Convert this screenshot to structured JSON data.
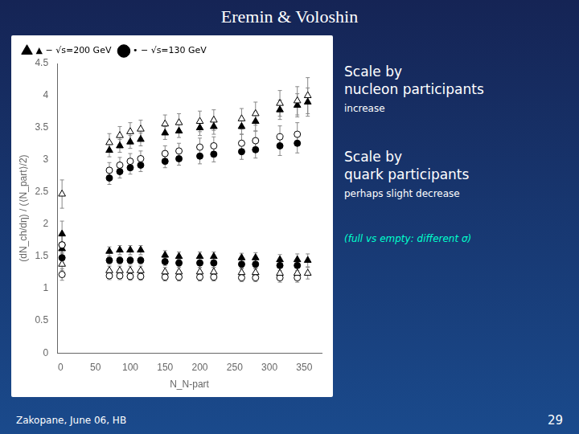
{
  "chart_data": {
    "type": "scatter",
    "title": "Eremin & Voloshin",
    "x_label": "N_N-part",
    "y_label": "(dN_ch/dη) / (⟨N_part⟩/2)",
    "xlim": [
      -5,
      375
    ],
    "ylim": [
      0,
      4.5
    ],
    "xticks": [
      0,
      50,
      100,
      150,
      200,
      250,
      300,
      350
    ],
    "yticks": [
      0,
      0.5,
      1,
      1.5,
      2,
      2.5,
      3,
      3.5,
      4,
      4.5
    ],
    "grid": false,
    "legend": "upper left",
    "annotations": [
      {
        "lines": [
          "Scale by",
          "nucleon participants",
          "increase"
        ]
      },
      {
        "lines": [
          "Scale by",
          "quark participants",
          "perhaps slight decrease"
        ]
      },
      {
        "lines": [
          "(full vs empty: different σ)"
        ],
        "color": "#00ffcc"
      }
    ],
    "footer": [
      "Zakopane, June 06, HB",
      "29"
    ],
    "series": [
      {
        "name": "▲ − √s=200 GeV",
        "marker": "triangle",
        "color": "white",
        "x": [
          2,
          70,
          85,
          100,
          115,
          150,
          170,
          200,
          220,
          260,
          280,
          315,
          340,
          355
        ],
        "values": [
          2.47,
          3.27,
          3.38,
          3.44,
          3.48,
          3.56,
          3.58,
          3.6,
          3.62,
          3.64,
          3.72,
          3.88,
          3.92,
          4.0
        ],
        "errors": [
          0.22,
          0.14,
          0.14,
          0.14,
          0.14,
          0.14,
          0.14,
          0.16,
          0.16,
          0.16,
          0.18,
          0.2,
          0.22,
          0.28
        ]
      },
      {
        "name": "▲ − √s=200 GeV",
        "marker": "triangle",
        "color": "black",
        "x": [
          2,
          70,
          85,
          100,
          115,
          150,
          170,
          200,
          220,
          260,
          280,
          315,
          340,
          355
        ],
        "values": [
          1.85,
          3.15,
          3.22,
          3.28,
          3.32,
          3.42,
          3.45,
          3.5,
          3.52,
          3.52,
          3.6,
          3.78,
          3.85,
          3.9
        ],
        "errors": [
          0.2,
          0.1,
          0.1,
          0.1,
          0.1,
          0.1,
          0.1,
          0.12,
          0.12,
          0.12,
          0.15,
          0.15,
          0.18,
          0.22
        ]
      },
      {
        "name": "• − √s=130 GeV",
        "marker": "circle",
        "color": "white",
        "x": [
          2,
          70,
          85,
          100,
          115,
          150,
          170,
          200,
          220,
          260,
          280,
          315,
          340
        ],
        "values": [
          1.68,
          2.84,
          2.92,
          2.98,
          3.02,
          3.1,
          3.14,
          3.2,
          3.22,
          3.26,
          3.3,
          3.36,
          3.4
        ],
        "errors": [
          0.18,
          0.12,
          0.12,
          0.12,
          0.12,
          0.12,
          0.12,
          0.14,
          0.14,
          0.14,
          0.15,
          0.17,
          0.18
        ]
      },
      {
        "name": "• − √s=130 GeV",
        "marker": "circle",
        "color": "black",
        "x": [
          2,
          70,
          85,
          100,
          115,
          150,
          170,
          200,
          220,
          260,
          280,
          315,
          340
        ],
        "values": [
          1.68,
          2.72,
          2.82,
          2.88,
          2.92,
          2.98,
          3.02,
          3.06,
          3.09,
          3.13,
          3.16,
          3.22,
          3.26
        ],
        "errors": [
          0.14,
          0.1,
          0.1,
          0.1,
          0.1,
          0.1,
          0.1,
          0.12,
          0.12,
          0.12,
          0.13,
          0.15,
          0.15
        ]
      },
      {
        "name": "▲ − √s=200 GeV",
        "marker": "triangle",
        "color": "black",
        "x": [
          2,
          70,
          85,
          100,
          115,
          150,
          170,
          200,
          220,
          260,
          280,
          315,
          340,
          355
        ],
        "values": [
          1.62,
          1.58,
          1.6,
          1.6,
          1.6,
          1.52,
          1.5,
          1.5,
          1.5,
          1.48,
          1.48,
          1.45,
          1.45,
          1.44
        ],
        "errors": [
          0.1,
          0.07,
          0.07,
          0.07,
          0.07,
          0.07,
          0.07,
          0.07,
          0.07,
          0.07,
          0.08,
          0.08,
          0.09,
          0.1
        ]
      },
      {
        "name": "▲ − √s=200 GeV",
        "marker": "triangle",
        "color": "white",
        "x": [
          2,
          70,
          85,
          100,
          115,
          150,
          170,
          200,
          220,
          260,
          280,
          315,
          340,
          355
        ],
        "values": [
          1.38,
          1.28,
          1.28,
          1.28,
          1.28,
          1.26,
          1.26,
          1.26,
          1.26,
          1.25,
          1.25,
          1.24,
          1.24,
          1.24
        ],
        "errors": [
          0.1,
          0.07,
          0.07,
          0.07,
          0.07,
          0.07,
          0.07,
          0.07,
          0.07,
          0.07,
          0.07,
          0.08,
          0.08,
          0.09
        ]
      },
      {
        "name": "• − √s=130 GeV",
        "marker": "circle",
        "color": "black",
        "x": [
          2,
          70,
          85,
          100,
          115,
          150,
          170,
          200,
          220,
          260,
          280,
          315,
          340
        ],
        "values": [
          1.48,
          1.44,
          1.44,
          1.44,
          1.44,
          1.42,
          1.4,
          1.4,
          1.4,
          1.38,
          1.38,
          1.36,
          1.36
        ],
        "errors": [
          0.08,
          0.06,
          0.06,
          0.06,
          0.06,
          0.06,
          0.06,
          0.07,
          0.07,
          0.07,
          0.07,
          0.08,
          0.08
        ]
      },
      {
        "name": "• − √s=130 GeV",
        "marker": "circle",
        "color": "white",
        "x": [
          2,
          70,
          85,
          100,
          115,
          150,
          170,
          200,
          220,
          260,
          280,
          315,
          340
        ],
        "values": [
          1.22,
          1.2,
          1.2,
          1.19,
          1.19,
          1.18,
          1.18,
          1.18,
          1.18,
          1.17,
          1.17,
          1.17,
          1.17
        ],
        "errors": [
          0.09,
          0.06,
          0.06,
          0.06,
          0.06,
          0.06,
          0.06,
          0.06,
          0.06,
          0.06,
          0.06,
          0.07,
          0.07
        ]
      }
    ]
  }
}
